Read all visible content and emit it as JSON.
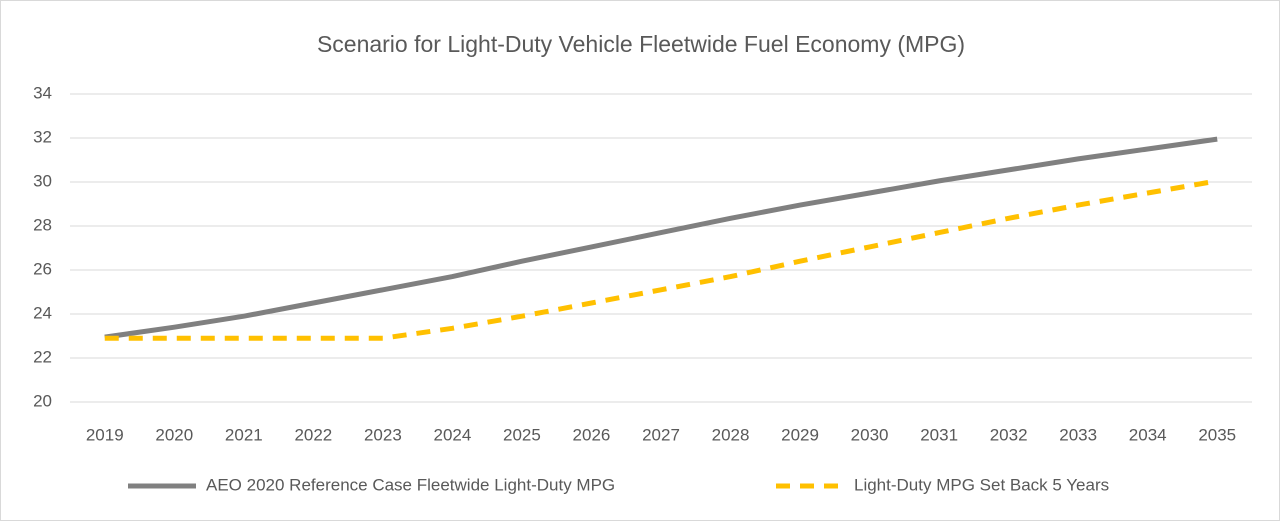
{
  "chart_data": {
    "type": "line",
    "title": "Scenario for Light-Duty Vehicle Fleetwide Fuel Economy (MPG)",
    "categories": [
      "2019",
      "2020",
      "2021",
      "2022",
      "2023",
      "2024",
      "2025",
      "2026",
      "2027",
      "2028",
      "2029",
      "2030",
      "2031",
      "2032",
      "2033",
      "2034",
      "2035"
    ],
    "series": [
      {
        "name": "AEO 2020 Reference Case Fleetwide Light-Duty MPG",
        "color": "#808080",
        "dashed": false,
        "values": [
          22.95,
          23.4,
          23.9,
          24.5,
          25.1,
          25.7,
          26.4,
          27.05,
          27.7,
          28.35,
          28.95,
          29.5,
          30.05,
          30.55,
          31.05,
          31.5,
          31.95
        ]
      },
      {
        "name": "Light-Duty MPG Set Back 5 Years",
        "color": "#ffc000",
        "dashed": true,
        "values": [
          22.9,
          22.9,
          22.9,
          22.9,
          22.9,
          23.35,
          23.9,
          24.5,
          25.1,
          25.7,
          26.4,
          27.05,
          27.7,
          28.35,
          28.95,
          29.5,
          30.05
        ]
      }
    ],
    "ylim": [
      20,
      34
    ],
    "yticks": [
      20,
      22,
      24,
      26,
      28,
      30,
      32,
      34
    ],
    "grid": true,
    "legend": "bottom"
  }
}
